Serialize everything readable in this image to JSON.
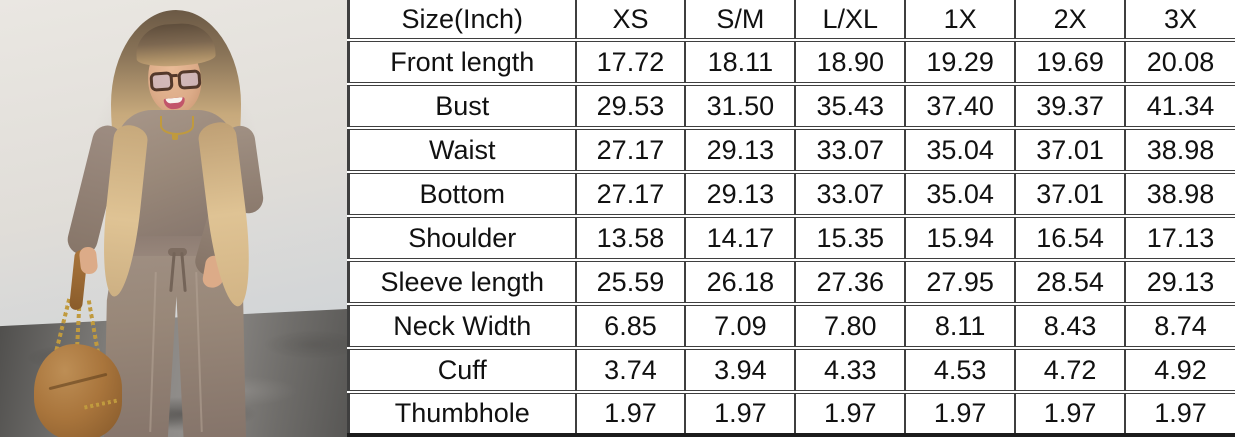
{
  "photo": {
    "description": "Model with long blonde balayage hair and tortoiseshell glasses, smiling and looking down, wearing a taupe ribbed long-sleeve top and matching wide-leg drawstring pants, one hand in pocket, the other holding a camel suede bag with gold chain straps, standing against a cream wall on a gray concrete floor",
    "colors": {
      "wall": "#eae7e2",
      "wall_lower": "#c6cfd8",
      "floor": "#6f6d6a",
      "floor_dark": "#4f4e4c",
      "outfit": "#998879",
      "outfit_shadow": "#82726a",
      "hair_root": "#6b5945",
      "hair_blonde": "#dfc394",
      "skin": "#dcab88",
      "glasses": "#54392b",
      "bag": "#a9753c",
      "gold": "#c09a3e"
    }
  },
  "chart_data": {
    "type": "table",
    "title": "Size(Inch)",
    "columns": [
      "Size(Inch)",
      "XS",
      "S/M",
      "L/XL",
      "1X",
      "2X",
      "3X"
    ],
    "rows": [
      {
        "label": "Front length",
        "values": [
          "17.72",
          "18.11",
          "18.90",
          "19.29",
          "19.69",
          "20.08"
        ]
      },
      {
        "label": "Bust",
        "values": [
          "29.53",
          "31.50",
          "35.43",
          "37.40",
          "39.37",
          "41.34"
        ]
      },
      {
        "label": "Waist",
        "values": [
          "27.17",
          "29.13",
          "33.07",
          "35.04",
          "37.01",
          "38.98"
        ]
      },
      {
        "label": "Bottom",
        "values": [
          "27.17",
          "29.13",
          "33.07",
          "35.04",
          "37.01",
          "38.98"
        ]
      },
      {
        "label": "Shoulder",
        "values": [
          "13.58",
          "14.17",
          "15.35",
          "15.94",
          "16.54",
          "17.13"
        ]
      },
      {
        "label": "Sleeve length",
        "values": [
          "25.59",
          "26.18",
          "27.36",
          "27.95",
          "28.54",
          "29.13"
        ]
      },
      {
        "label": "Neck Width",
        "values": [
          "6.85",
          "7.09",
          "7.80",
          "8.11",
          "8.43",
          "8.74"
        ]
      },
      {
        "label": "Cuff",
        "values": [
          "3.74",
          "3.94",
          "4.33",
          "4.53",
          "4.72",
          "4.92"
        ]
      },
      {
        "label": "Thumbhole",
        "values": [
          "1.97",
          "1.97",
          "1.97",
          "1.97",
          "1.97",
          "1.97"
        ]
      }
    ],
    "style": {
      "table_bg": "#ffffff",
      "table_text": "#111111",
      "table_border": "#3f3f3f"
    }
  }
}
